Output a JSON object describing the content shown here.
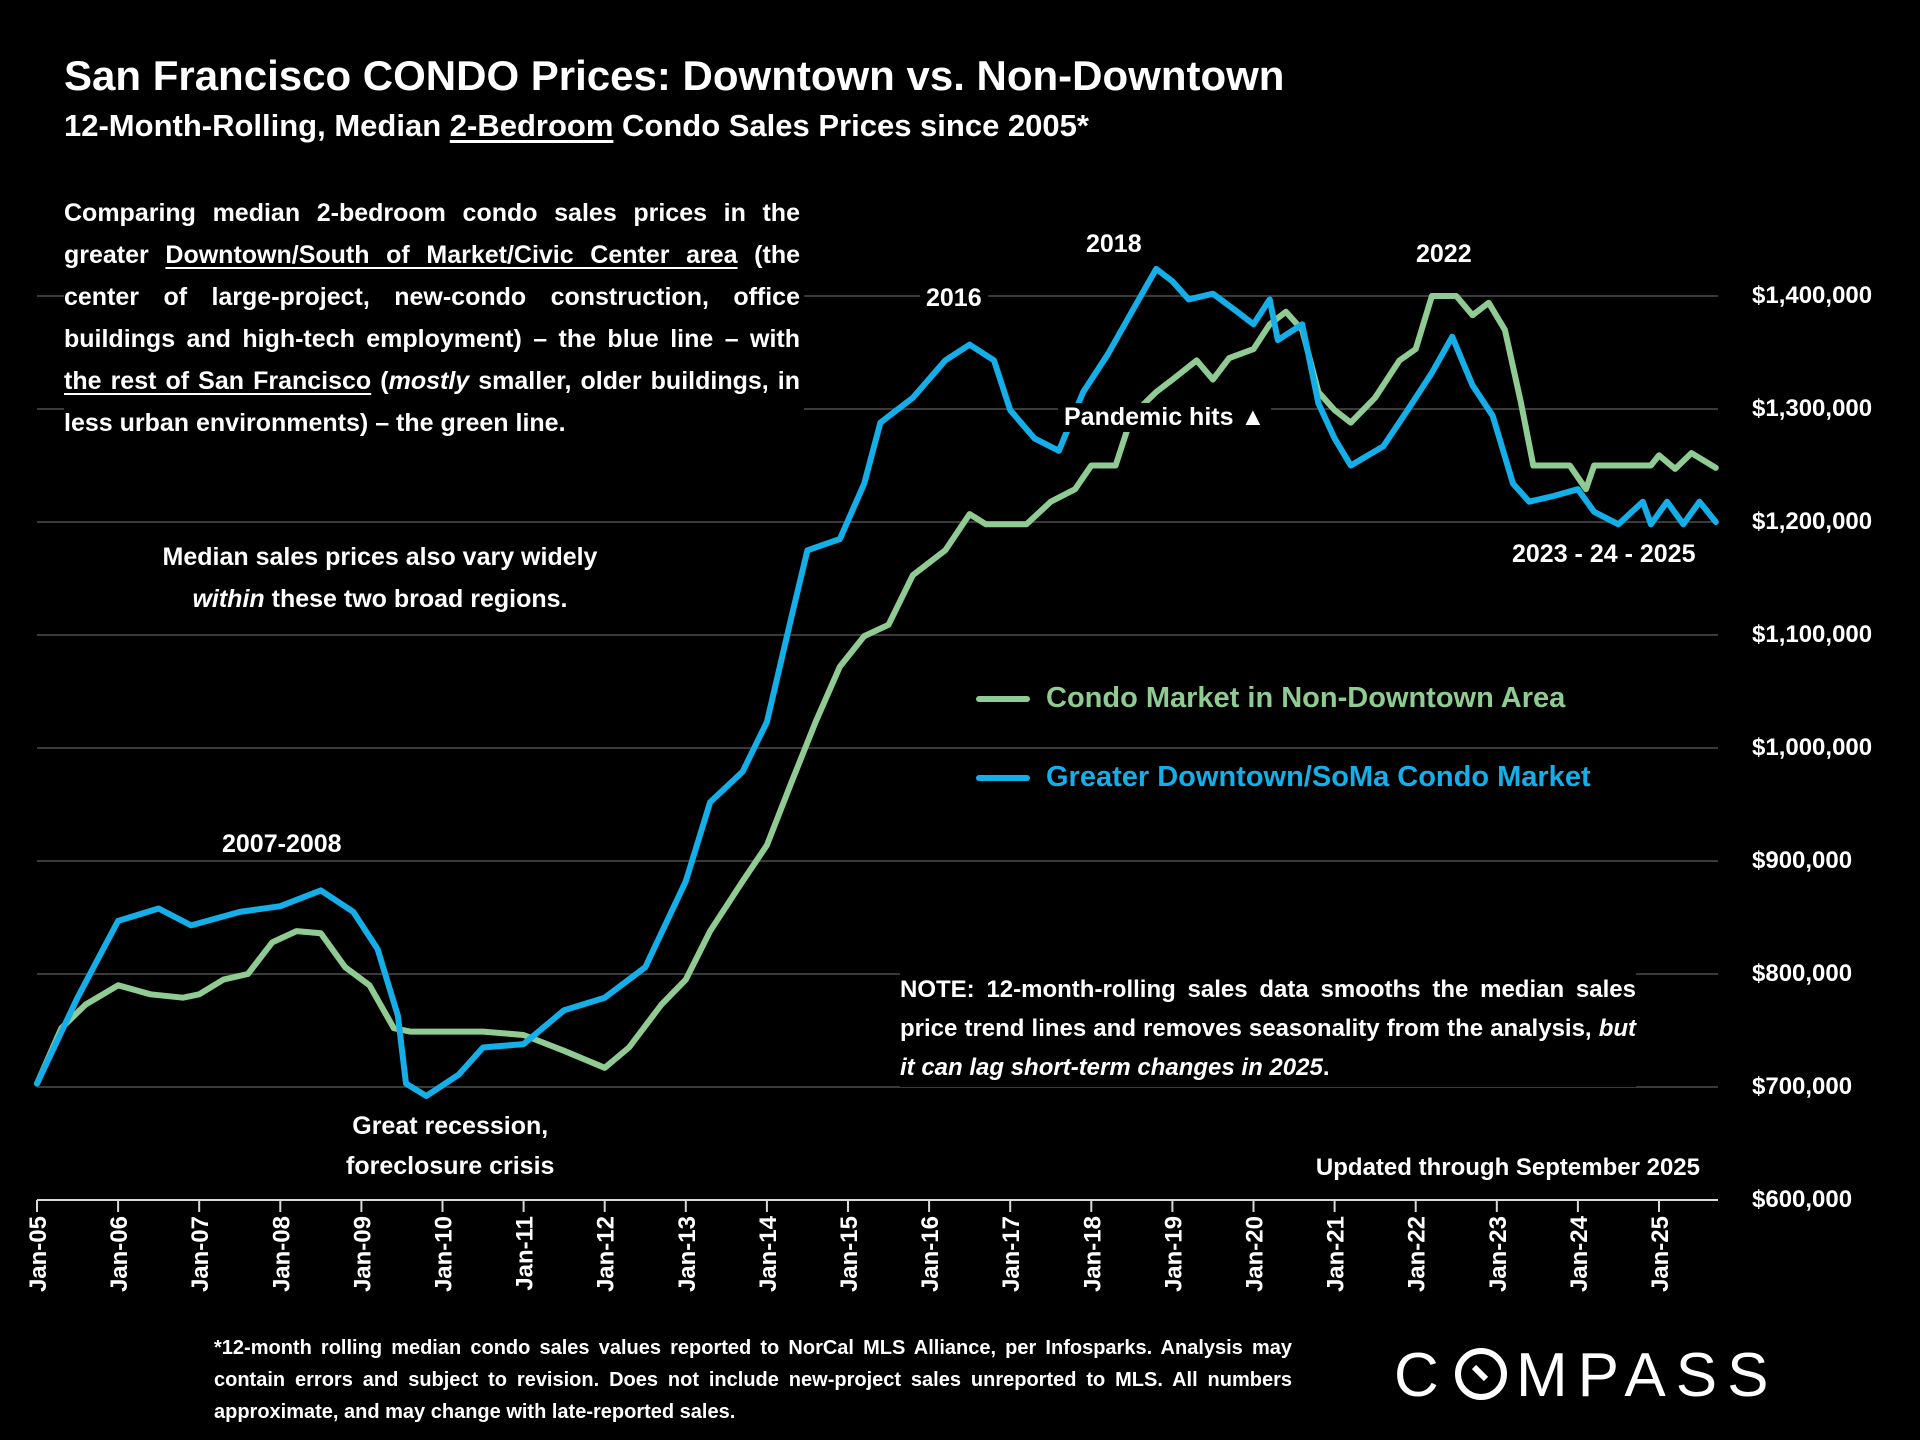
{
  "header": {
    "title": "San Francisco CONDO Prices: Downtown vs. Non-Downtown",
    "subtitle_pre": "12-Month-Rolling, Median ",
    "subtitle_u": "2-Bedroom",
    "subtitle_post": " Condo Sales Prices since 2005*"
  },
  "intro": {
    "p1": "Comparing median 2-bedroom condo sales prices in the greater ",
    "p2": "Downtown/South of Market/Civic Center area",
    "p3": " (the center of large-project, new-condo construction, office buildings and high-tech employment) – the blue line – with ",
    "p4": "the rest of San Francisco",
    "p5": " (",
    "p6": "mostly",
    "p7": " smaller, older buildings, in less urban environments) – the green line."
  },
  "median_note": {
    "l1": "Median sales prices also vary widely",
    "l2a": "within",
    "l2b": " these two broad regions."
  },
  "note": {
    "n1": "NOTE: 12-month-rolling sales data smooths the median sales price trend lines and removes seasonality from the analysis, ",
    "n2": "but it can lag short-term changes in 2025",
    "n3": "."
  },
  "updated": "Updated through September 2025",
  "footnote": "*12-month rolling median condo sales values reported to NorCal MLS Alliance, per Infosparks. Analysis may contain errors and subject to revision. Does not include new-project sales unreported to MLS. All numbers approximate, and may change with late-reported sales.",
  "logo": "COMPASS",
  "chart_data": {
    "type": "line",
    "title": "San Francisco CONDO Prices: Downtown vs. Non-Downtown",
    "ylim": [
      600000,
      1430000
    ],
    "xlim": [
      2005.0,
      2025.75
    ],
    "grid": true,
    "legend_position": "center-right",
    "yticks": [
      600000,
      700000,
      800000,
      900000,
      1000000,
      1100000,
      1200000,
      1300000,
      1400000
    ],
    "ytick_labels": [
      "$600,000",
      "$700,000",
      "$800,000",
      "$900,000",
      "$1,000,000",
      "$1,100,000",
      "$1,200,000",
      "$1,300,000",
      "$1,400,000"
    ],
    "xtick_labels": [
      "Jan-05",
      "Jan-06",
      "Jan-07",
      "Jan-08",
      "Jan-09",
      "Jan-10",
      "Jan-11",
      "Jan-12",
      "Jan-13",
      "Jan-14",
      "Jan-15",
      "Jan-16",
      "Jan-17",
      "Jan-18",
      "Jan-19",
      "Jan-20",
      "Jan-21",
      "Jan-22",
      "Jan-23",
      "Jan-24",
      "Jan-25"
    ],
    "annotations": {
      "a2007": "2007-2008",
      "a2016": "2016",
      "a2018": "2018",
      "a2022": "2022",
      "pandemic": "Pandemic hits ▲",
      "recent": "2023 - 24 - 2025",
      "recession1": "Great recession,",
      "recession2": "foreclosure crisis"
    },
    "series": [
      {
        "name": "Condo Market in Non-Downtown Area",
        "color": "#8fcb93",
        "x": [
          2005.0,
          2005.3,
          2005.6,
          2006.0,
          2006.4,
          2006.8,
          2007.0,
          2007.3,
          2007.6,
          2007.9,
          2008.2,
          2008.5,
          2008.8,
          2009.1,
          2009.4,
          2009.6,
          2010.5,
          2011.0,
          2011.5,
          2012.0,
          2012.3,
          2012.7,
          2013.0,
          2013.3,
          2013.7,
          2014.0,
          2014.3,
          2014.6,
          2014.9,
          2015.2,
          2015.5,
          2015.8,
          2016.2,
          2016.5,
          2016.7,
          2017.2,
          2017.5,
          2017.8,
          2018.0,
          2018.3,
          2018.5,
          2018.8,
          2019.0,
          2019.3,
          2019.5,
          2019.7,
          2020.0,
          2020.2,
          2020.4,
          2020.6,
          2020.8,
          2021.0,
          2021.2,
          2021.5,
          2021.8,
          2022.0,
          2022.2,
          2022.5,
          2022.7,
          2022.9,
          2023.1,
          2023.3,
          2023.45,
          2023.9,
          2024.1,
          2024.2,
          2024.9,
          2025.0,
          2025.2,
          2025.4,
          2025.7
        ],
        "values": [
          703000,
          752000,
          773000,
          790000,
          782000,
          779000,
          782000,
          795000,
          800000,
          828000,
          838000,
          836000,
          806000,
          790000,
          752000,
          749000,
          749000,
          746000,
          732000,
          717000,
          735000,
          773000,
          795000,
          838000,
          882000,
          914000,
          969000,
          1023000,
          1072000,
          1099000,
          1109000,
          1153000,
          1175000,
          1207000,
          1198000,
          1198000,
          1218000,
          1229000,
          1250000,
          1250000,
          1294000,
          1315000,
          1326000,
          1343000,
          1326000,
          1345000,
          1353000,
          1375000,
          1386000,
          1370000,
          1315000,
          1299000,
          1288000,
          1310000,
          1343000,
          1353000,
          1400000,
          1400000,
          1383000,
          1394000,
          1370000,
          1305000,
          1250000,
          1250000,
          1229000,
          1250000,
          1250000,
          1259000,
          1247000,
          1261000,
          1248000
        ]
      },
      {
        "name": "Greater Downtown/SoMa Condo Market",
        "color": "#14aee8",
        "x": [
          2005.0,
          2005.5,
          2006.0,
          2006.5,
          2006.9,
          2007.5,
          2008.0,
          2008.5,
          2008.9,
          2009.2,
          2009.45,
          2009.55,
          2009.8,
          2010.2,
          2010.5,
          2011.0,
          2011.5,
          2012.0,
          2012.5,
          2013.0,
          2013.3,
          2013.7,
          2014.0,
          2014.3,
          2014.5,
          2014.9,
          2015.2,
          2015.4,
          2015.8,
          2016.2,
          2016.5,
          2016.8,
          2017.0,
          2017.3,
          2017.6,
          2017.9,
          2018.2,
          2018.5,
          2018.8,
          2019.0,
          2019.2,
          2019.5,
          2019.8,
          2020.0,
          2020.2,
          2020.3,
          2020.6,
          2020.8,
          2021.0,
          2021.2,
          2021.6,
          2021.9,
          2022.2,
          2022.45,
          2022.7,
          2022.95,
          2023.2,
          2023.4,
          2023.7,
          2024.0,
          2024.2,
          2024.5,
          2024.8,
          2024.9,
          2025.1,
          2025.3,
          2025.5,
          2025.7
        ],
        "values": [
          703000,
          779000,
          847000,
          858000,
          843000,
          855000,
          860000,
          874000,
          855000,
          822000,
          763000,
          703000,
          692000,
          711000,
          735000,
          738000,
          768000,
          779000,
          806000,
          882000,
          952000,
          979000,
          1023000,
          1115000,
          1175000,
          1185000,
          1234000,
          1288000,
          1310000,
          1343000,
          1357000,
          1343000,
          1299000,
          1274000,
          1263000,
          1315000,
          1348000,
          1386000,
          1424000,
          1413000,
          1397000,
          1402000,
          1386000,
          1375000,
          1397000,
          1361000,
          1375000,
          1305000,
          1274000,
          1250000,
          1267000,
          1299000,
          1332000,
          1364000,
          1321000,
          1294000,
          1234000,
          1218000,
          1223000,
          1229000,
          1209000,
          1198000,
          1218000,
          1198000,
          1218000,
          1198000,
          1218000,
          1200000
        ]
      }
    ]
  }
}
